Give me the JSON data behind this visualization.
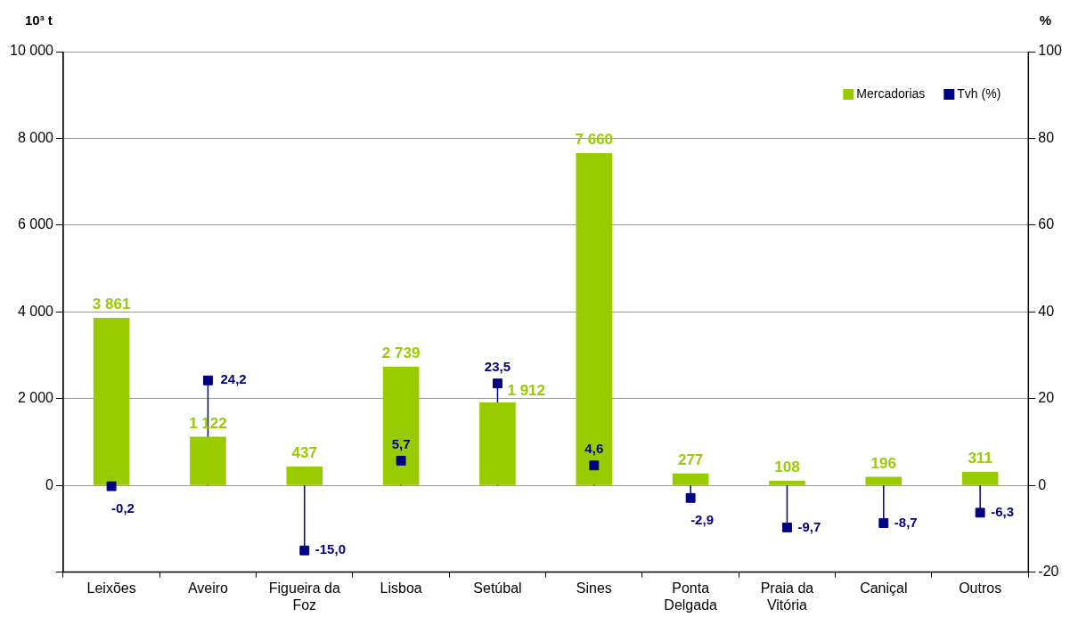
{
  "chart_data": {
    "type": "bar",
    "ylabel": "10³ t",
    "y2label": "%",
    "categories": [
      "Leixões",
      "Aveiro",
      "Figueira da Foz",
      "Lisboa",
      "Setúbal",
      "Sines",
      "Ponta Delgada",
      "Praia da Vitória",
      "Caniçal",
      "Outros"
    ],
    "series": [
      {
        "name": "Mercadorias",
        "color": "#99cc00",
        "values": [
          3861,
          1122,
          437,
          2739,
          1912,
          7660,
          277,
          108,
          196,
          311
        ],
        "value_labels": [
          "3 861",
          "1 122",
          "437",
          "2 739",
          "1 912",
          "7 660",
          "277",
          "108",
          "196",
          "311"
        ]
      },
      {
        "name": "Tvh (%)",
        "type": "lollipop",
        "axis": "y2",
        "color": "#000080",
        "values": [
          -0.2,
          24.2,
          -15.0,
          5.7,
          23.5,
          4.6,
          -2.9,
          -9.7,
          -8.7,
          -6.3
        ],
        "value_labels": [
          "-0,2",
          "24,2",
          "-15,0",
          "5,7",
          "23,5",
          "4,6",
          "-2,9",
          "-9,7",
          "-8,7",
          "-6,3"
        ]
      }
    ],
    "ylim": [
      -2000,
      10000
    ],
    "yticks": [
      {
        "value": -2000,
        "label": null
      },
      0,
      {
        "value": 2000,
        "label": "2 000"
      },
      {
        "value": 4000,
        "label": "4 000"
      },
      {
        "value": 6000,
        "label": "6 000"
      },
      {
        "value": 8000,
        "label": "8 000"
      },
      {
        "value": 10000,
        "label": "10 000"
      }
    ],
    "y2lim": [
      -20,
      100
    ],
    "y2ticks": [
      -20,
      0,
      20,
      40,
      60,
      80,
      100
    ],
    "grid": "y",
    "legend": "top right",
    "marker": "square"
  }
}
